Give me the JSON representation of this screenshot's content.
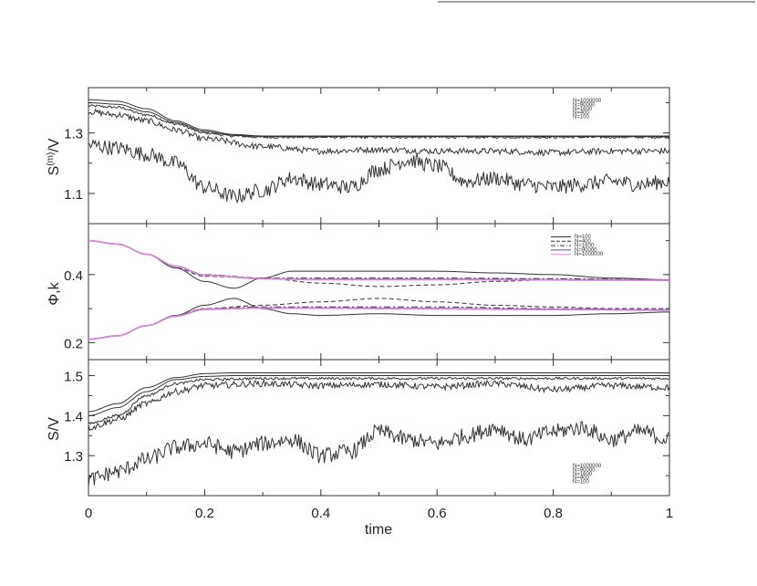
{
  "chart_data": [
    {
      "type": "line",
      "ylabel_base": "S",
      "ylabel_sup": "(m)",
      "ylabel_tail": "/V",
      "xlim": [
        0,
        1
      ],
      "ylim": [
        1.0,
        1.45
      ],
      "yticks": [
        1.1,
        1.3
      ],
      "ytick_labels": [
        "1.1",
        "1.3"
      ],
      "legend_position": "top-right",
      "legend": [
        "N=1000000",
        "N=90000",
        "N=1600",
        "N=400",
        "N=100"
      ],
      "series": [
        {
          "name": "N=1000000",
          "style": "solid",
          "color": "#333333",
          "noise": 0.0,
          "x": [
            0,
            0.05,
            0.1,
            0.15,
            0.2,
            0.25,
            0.3,
            1.0
          ],
          "y": [
            1.41,
            1.405,
            1.38,
            1.34,
            1.31,
            1.295,
            1.29,
            1.29
          ]
        },
        {
          "name": "N=90000",
          "style": "solid",
          "color": "#333333",
          "noise": 0.0,
          "x": [
            0,
            0.05,
            0.1,
            0.15,
            0.2,
            0.25,
            0.3,
            1.0
          ],
          "y": [
            1.4,
            1.395,
            1.37,
            1.335,
            1.305,
            1.292,
            1.288,
            1.288
          ]
        },
        {
          "name": "N=1600",
          "style": "solid",
          "color": "#333333",
          "noise": 0.004,
          "x": [
            0,
            0.05,
            0.1,
            0.15,
            0.2,
            0.25,
            0.3,
            1.0
          ],
          "y": [
            1.39,
            1.385,
            1.36,
            1.33,
            1.3,
            1.29,
            1.286,
            1.286
          ]
        },
        {
          "name": "N=400",
          "style": "solid",
          "color": "#333333",
          "noise": 0.01,
          "x": [
            0,
            0.05,
            0.1,
            0.15,
            0.2,
            0.3,
            0.4,
            0.5,
            0.6,
            0.7,
            0.8,
            0.9,
            1.0
          ],
          "y": [
            1.37,
            1.36,
            1.34,
            1.31,
            1.28,
            1.255,
            1.24,
            1.245,
            1.24,
            1.24,
            1.235,
            1.24,
            1.24
          ]
        },
        {
          "name": "N=100",
          "style": "solid",
          "color": "#333333",
          "noise": 0.025,
          "x": [
            0,
            0.05,
            0.1,
            0.15,
            0.2,
            0.25,
            0.3,
            0.35,
            0.4,
            0.45,
            0.5,
            0.55,
            0.6,
            0.65,
            0.7,
            0.75,
            0.8,
            0.85,
            0.9,
            0.95,
            1.0
          ],
          "y": [
            1.26,
            1.25,
            1.23,
            1.2,
            1.12,
            1.09,
            1.11,
            1.15,
            1.13,
            1.12,
            1.18,
            1.21,
            1.19,
            1.14,
            1.15,
            1.13,
            1.12,
            1.13,
            1.14,
            1.13,
            1.14
          ]
        }
      ]
    },
    {
      "type": "line",
      "ylabel": "Φ,k",
      "xlim": [
        0,
        1
      ],
      "ylim": [
        0.15,
        0.55
      ],
      "yticks": [
        0.2,
        0.4
      ],
      "ytick_labels": [
        "0.2",
        "0.4"
      ],
      "legend_position": "top-right",
      "legend": [
        "N=100",
        "N=400",
        "N=1600",
        "N=90000",
        "N=1000000"
      ],
      "series": [
        {
          "name": "N=100",
          "style": "solid",
          "color": "#333333",
          "noise": 0,
          "x": [
            0,
            0.05,
            0.1,
            0.15,
            0.2,
            0.25,
            0.3,
            0.35,
            0.4,
            0.5,
            0.6,
            0.7,
            0.8,
            0.9,
            1.0
          ],
          "y": [
            0.5,
            0.49,
            0.46,
            0.42,
            0.38,
            0.36,
            0.39,
            0.41,
            0.41,
            0.41,
            0.41,
            0.405,
            0.4,
            0.39,
            0.385
          ]
        },
        {
          "name": "N=100",
          "style": "solid",
          "color": "#333333",
          "noise": 0,
          "x": [
            0,
            0.05,
            0.1,
            0.15,
            0.2,
            0.25,
            0.3,
            0.35,
            0.4,
            0.5,
            0.6,
            0.7,
            0.8,
            0.9,
            1.0
          ],
          "y": [
            0.21,
            0.22,
            0.25,
            0.28,
            0.31,
            0.33,
            0.3,
            0.285,
            0.28,
            0.285,
            0.28,
            0.28,
            0.28,
            0.285,
            0.29
          ]
        },
        {
          "name": "N=400",
          "style": "dashed",
          "color": "#333333",
          "noise": 0,
          "x": [
            0,
            0.05,
            0.1,
            0.15,
            0.2,
            0.3,
            0.4,
            0.5,
            0.6,
            0.7,
            0.8,
            0.9,
            1.0
          ],
          "y": [
            0.5,
            0.49,
            0.46,
            0.42,
            0.395,
            0.39,
            0.375,
            0.365,
            0.37,
            0.38,
            0.385,
            0.385,
            0.385
          ]
        },
        {
          "name": "N=400",
          "style": "dashed",
          "color": "#333333",
          "noise": 0,
          "x": [
            0,
            0.05,
            0.1,
            0.15,
            0.2,
            0.3,
            0.4,
            0.5,
            0.6,
            0.7,
            0.8,
            0.9,
            1.0
          ],
          "y": [
            0.21,
            0.22,
            0.25,
            0.28,
            0.3,
            0.31,
            0.32,
            0.33,
            0.32,
            0.31,
            0.305,
            0.3,
            0.3
          ]
        },
        {
          "name": "N=1600",
          "style": "dashdot",
          "color": "#333333",
          "noise": 0,
          "x": [
            0,
            0.05,
            0.1,
            0.15,
            0.2,
            0.3,
            0.4,
            0.6,
            0.8,
            1.0
          ],
          "y": [
            0.5,
            0.49,
            0.46,
            0.425,
            0.4,
            0.39,
            0.39,
            0.39,
            0.388,
            0.385
          ]
        },
        {
          "name": "N=1600",
          "style": "dashdot",
          "color": "#333333",
          "noise": 0,
          "x": [
            0,
            0.05,
            0.1,
            0.15,
            0.2,
            0.3,
            0.4,
            0.6,
            0.8,
            1.0
          ],
          "y": [
            0.21,
            0.22,
            0.25,
            0.28,
            0.3,
            0.305,
            0.305,
            0.305,
            0.3,
            0.295
          ]
        },
        {
          "name": "N=90000",
          "style": "solid",
          "color": "#6a4a9c",
          "noise": 0,
          "x": [
            0,
            0.05,
            0.1,
            0.15,
            0.2,
            0.3,
            0.4,
            0.6,
            0.8,
            1.0
          ],
          "y": [
            0.5,
            0.49,
            0.46,
            0.425,
            0.398,
            0.388,
            0.386,
            0.386,
            0.385,
            0.384
          ]
        },
        {
          "name": "N=90000",
          "style": "solid",
          "color": "#6a4a9c",
          "noise": 0,
          "x": [
            0,
            0.05,
            0.1,
            0.15,
            0.2,
            0.3,
            0.4,
            0.6,
            0.8,
            1.0
          ],
          "y": [
            0.21,
            0.22,
            0.25,
            0.278,
            0.298,
            0.302,
            0.302,
            0.3,
            0.298,
            0.296
          ]
        },
        {
          "name": "N=1000000",
          "style": "solid",
          "color": "#d98ad9",
          "noise": 0,
          "x": [
            0,
            0.05,
            0.1,
            0.15,
            0.2,
            0.3,
            0.4,
            0.6,
            0.8,
            1.0
          ],
          "y": [
            0.5,
            0.49,
            0.46,
            0.425,
            0.398,
            0.388,
            0.385,
            0.385,
            0.384,
            0.383
          ]
        },
        {
          "name": "N=1000000",
          "style": "solid",
          "color": "#d98ad9",
          "noise": 0,
          "x": [
            0,
            0.05,
            0.1,
            0.15,
            0.2,
            0.3,
            0.4,
            0.6,
            0.8,
            1.0
          ],
          "y": [
            0.21,
            0.22,
            0.25,
            0.278,
            0.298,
            0.302,
            0.301,
            0.299,
            0.297,
            0.295
          ]
        }
      ]
    },
    {
      "type": "line",
      "ylabel": "S/V",
      "xlabel": "time",
      "xlim": [
        0,
        1
      ],
      "ylim": [
        1.2,
        1.54
      ],
      "yticks": [
        1.3,
        1.4,
        1.5
      ],
      "ytick_labels": [
        "1.3",
        "1.4",
        "1.5"
      ],
      "xticks": [
        0,
        0.2,
        0.4,
        0.6,
        0.8,
        1
      ],
      "xtick_labels": [
        "0",
        "0.2",
        "0.4",
        "0.6",
        "0.8",
        "1"
      ],
      "legend_position": "bottom-right",
      "legend": [
        "N=1000000",
        "N=90000",
        "N=1600",
        "N=400",
        "N=100"
      ],
      "series": [
        {
          "name": "N=1000000",
          "style": "solid",
          "color": "#333333",
          "noise": 0,
          "x": [
            0,
            0.05,
            0.1,
            0.15,
            0.2,
            0.25,
            1.0
          ],
          "y": [
            1.41,
            1.43,
            1.47,
            1.495,
            1.505,
            1.507,
            1.507
          ]
        },
        {
          "name": "N=90000",
          "style": "solid",
          "color": "#333333",
          "noise": 0,
          "x": [
            0,
            0.05,
            0.1,
            0.15,
            0.2,
            0.25,
            1.0
          ],
          "y": [
            1.4,
            1.42,
            1.46,
            1.49,
            1.498,
            1.5,
            1.5
          ]
        },
        {
          "name": "N=1600",
          "style": "solid",
          "color": "#333333",
          "noise": 0.003,
          "x": [
            0,
            0.05,
            0.1,
            0.15,
            0.2,
            0.3,
            1.0
          ],
          "y": [
            1.38,
            1.4,
            1.45,
            1.48,
            1.49,
            1.493,
            1.493
          ]
        },
        {
          "name": "N=400",
          "style": "solid",
          "color": "#333333",
          "noise": 0.008,
          "x": [
            0,
            0.05,
            0.1,
            0.15,
            0.2,
            0.3,
            0.4,
            0.5,
            0.6,
            0.7,
            0.8,
            0.9,
            1.0
          ],
          "y": [
            1.37,
            1.39,
            1.43,
            1.46,
            1.475,
            1.48,
            1.475,
            1.478,
            1.472,
            1.48,
            1.465,
            1.475,
            1.47
          ]
        },
        {
          "name": "N=100",
          "style": "solid",
          "color": "#333333",
          "noise": 0.02,
          "x": [
            0,
            0.05,
            0.1,
            0.15,
            0.2,
            0.25,
            0.3,
            0.35,
            0.4,
            0.45,
            0.5,
            0.55,
            0.6,
            0.65,
            0.7,
            0.75,
            0.8,
            0.85,
            0.9,
            0.95,
            1.0
          ],
          "y": [
            1.24,
            1.26,
            1.29,
            1.32,
            1.33,
            1.31,
            1.33,
            1.34,
            1.3,
            1.31,
            1.36,
            1.34,
            1.33,
            1.35,
            1.37,
            1.34,
            1.36,
            1.37,
            1.34,
            1.36,
            1.34
          ]
        }
      ]
    }
  ]
}
